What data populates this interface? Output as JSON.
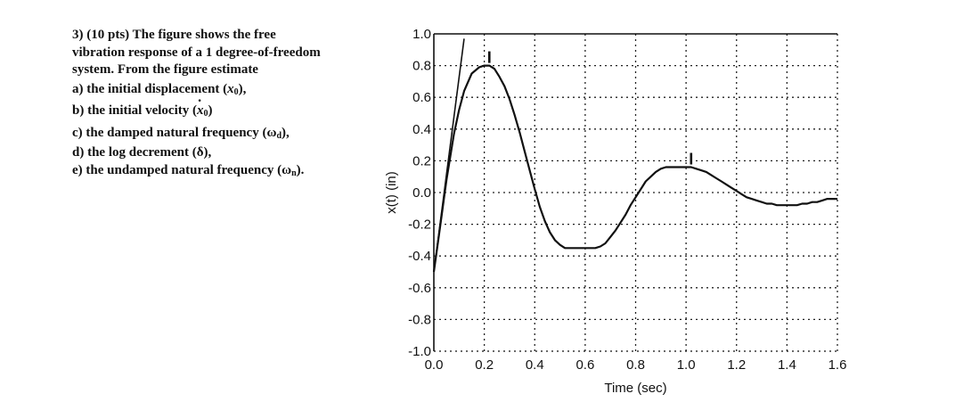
{
  "problem": {
    "line1": "3) (10 pts)  The figure shows the free",
    "line2": "vibration response of a 1 degree-of-freedom",
    "line3": "system.  From the figure estimate",
    "part_a_prefix": "a) the initial displacement (",
    "part_a_var": "x",
    "part_a_sub": "0",
    "part_a_suffix": "),",
    "part_b_prefix": "b) the initial velocity (",
    "part_b_var": "x",
    "part_b_sub": "0",
    "part_b_suffix": ")",
    "part_c": "c) the damped natural frequency (ω",
    "part_c_sub": "d",
    "part_c_suffix": "),",
    "part_d": "d) the log decrement (δ),",
    "part_e": "e) the undamped natural frequency (ω",
    "part_e_sub": "n",
    "part_e_suffix": ")."
  },
  "chart_data": {
    "type": "line",
    "title": "",
    "xlabel": "Time (sec)",
    "ylabel": "x(t) (in)",
    "xlim": [
      0,
      1.6
    ],
    "ylim": [
      -1.0,
      1.0
    ],
    "x_ticks": [
      "0.0",
      "0.2",
      "0.4",
      "0.6",
      "0.8",
      "1.0",
      "1.2",
      "1.4",
      "1.6"
    ],
    "y_ticks": [
      "1.0",
      "0.8",
      "0.6",
      "0.4",
      "0.2",
      "0.0",
      "-0.2",
      "-0.4",
      "-0.6",
      "-0.8",
      "-1.0"
    ],
    "grid": true,
    "grid_style": "dotted",
    "series": [
      {
        "x": [
          0.0,
          0.02,
          0.05,
          0.08,
          0.1,
          0.12,
          0.15,
          0.18,
          0.2,
          0.22,
          0.24,
          0.26,
          0.28,
          0.3,
          0.32,
          0.34,
          0.36,
          0.38,
          0.4,
          0.42,
          0.44,
          0.46,
          0.48,
          0.5,
          0.52,
          0.54,
          0.56,
          0.58,
          0.6,
          0.62,
          0.64,
          0.66,
          0.68,
          0.7,
          0.72,
          0.74,
          0.76,
          0.78,
          0.8,
          0.82,
          0.84,
          0.86,
          0.88,
          0.9,
          0.92,
          0.94,
          0.96,
          0.98,
          1.0,
          1.02,
          1.04,
          1.06,
          1.08,
          1.1,
          1.12,
          1.14,
          1.16,
          1.18,
          1.2,
          1.22,
          1.24,
          1.26,
          1.28,
          1.3,
          1.32,
          1.34,
          1.36,
          1.38,
          1.4,
          1.42,
          1.44,
          1.46,
          1.48,
          1.5,
          1.52,
          1.54,
          1.56,
          1.58,
          1.6
        ],
        "values": [
          -0.5,
          -0.27,
          0.08,
          0.37,
          0.52,
          0.64,
          0.75,
          0.79,
          0.8,
          0.8,
          0.78,
          0.73,
          0.67,
          0.59,
          0.49,
          0.38,
          0.26,
          0.14,
          0.02,
          -0.09,
          -0.18,
          -0.25,
          -0.3,
          -0.33,
          -0.35,
          -0.35,
          -0.35,
          -0.35,
          -0.35,
          -0.35,
          -0.35,
          -0.34,
          -0.32,
          -0.28,
          -0.24,
          -0.19,
          -0.14,
          -0.08,
          -0.03,
          0.02,
          0.07,
          0.1,
          0.13,
          0.15,
          0.16,
          0.16,
          0.16,
          0.16,
          0.16,
          0.16,
          0.15,
          0.14,
          0.13,
          0.11,
          0.09,
          0.07,
          0.05,
          0.03,
          0.01,
          -0.01,
          -0.03,
          -0.04,
          -0.05,
          -0.06,
          -0.07,
          -0.07,
          -0.08,
          -0.08,
          -0.08,
          -0.08,
          -0.08,
          -0.07,
          -0.07,
          -0.06,
          -0.06,
          -0.05,
          -0.04,
          -0.04,
          -0.04
        ]
      }
    ],
    "tangent_line": {
      "x": [
        0.0,
        0.12
      ],
      "values": [
        -0.5,
        0.97
      ]
    },
    "peak_markers": [
      {
        "x": 0.22,
        "value": 0.8
      },
      {
        "x": 1.02,
        "value": 0.16
      }
    ]
  }
}
